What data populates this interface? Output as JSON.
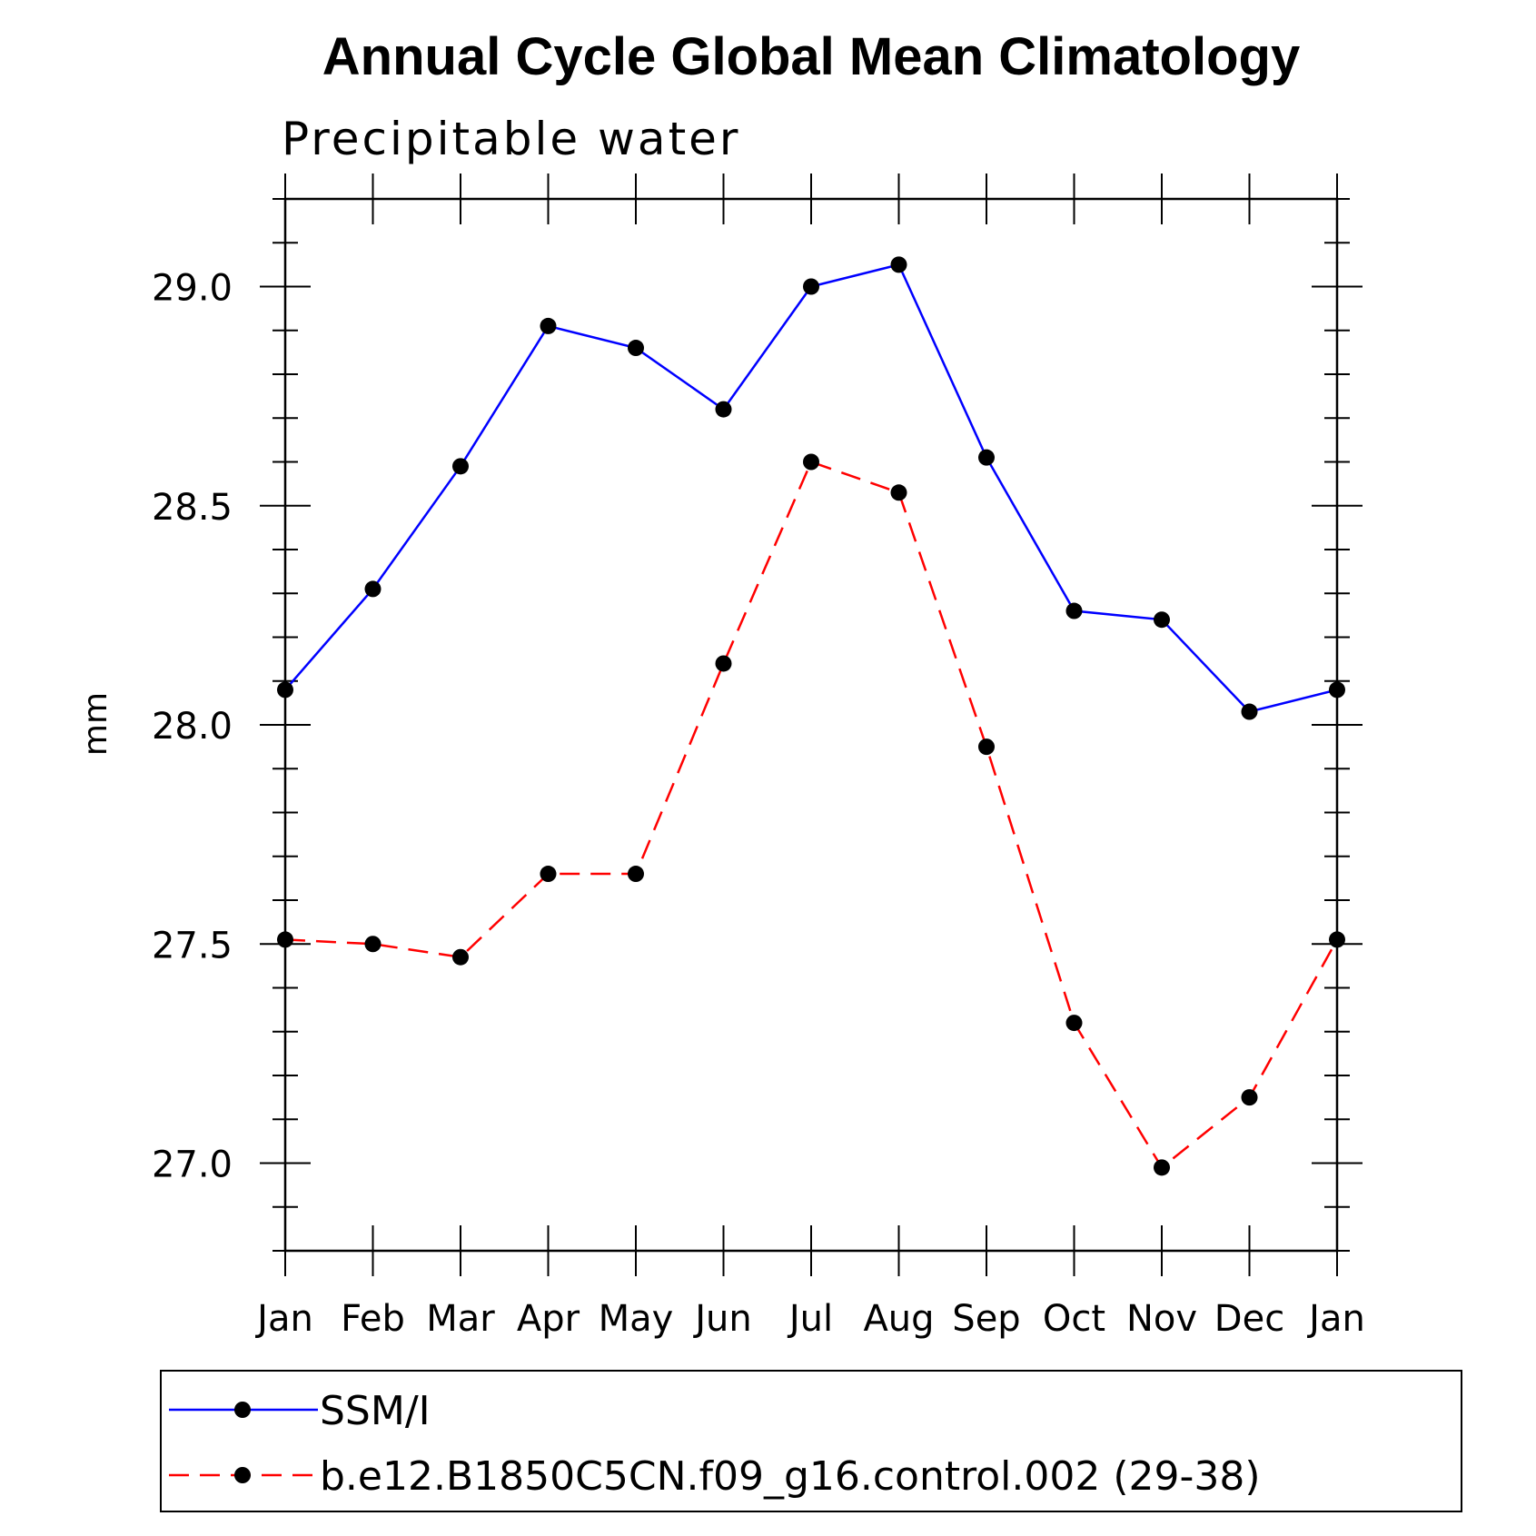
{
  "chart_data": {
    "type": "line",
    "title": "Annual Cycle Global Mean Climatology",
    "subtitle": "Precipitable water",
    "ylabel": "mm",
    "xlabel": "",
    "categories": [
      "Jan",
      "Feb",
      "Mar",
      "Apr",
      "May",
      "Jun",
      "Jul",
      "Aug",
      "Sep",
      "Oct",
      "Nov",
      "Dec",
      "Jan"
    ],
    "ylim": [
      26.8,
      29.2
    ],
    "yticks": [
      27.0,
      27.5,
      28.0,
      28.5,
      29.0
    ],
    "ytick_labels": [
      "27.0",
      "27.5",
      "28.0",
      "28.5",
      "29.0"
    ],
    "grid": false,
    "legend_position": "bottom",
    "series": [
      {
        "name": "SSM/I",
        "color": "#0000ff",
        "dash": "solid",
        "marker": "filled-circle",
        "values": [
          28.08,
          28.31,
          28.59,
          28.91,
          28.86,
          28.72,
          29.0,
          29.05,
          28.61,
          28.26,
          28.24,
          28.03,
          28.08
        ]
      },
      {
        "name": "b.e12.B1850C5CN.f09_g16.control.002 (29-38)",
        "color": "#ff0000",
        "dash": "dashed",
        "marker": "filled-circle",
        "values": [
          27.51,
          27.5,
          27.47,
          27.66,
          27.66,
          28.14,
          28.6,
          28.53,
          27.95,
          27.32,
          26.99,
          27.15,
          27.51
        ]
      }
    ]
  }
}
